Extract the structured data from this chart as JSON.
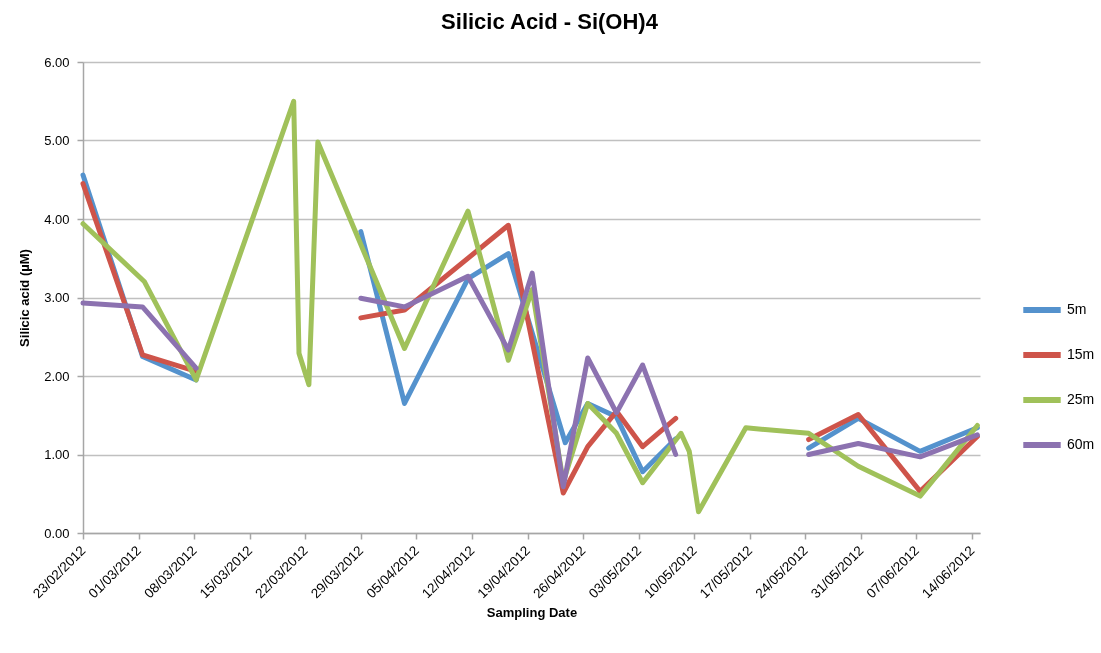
{
  "chart_data": {
    "type": "line",
    "title": "Silicic Acid - Si(OH)4",
    "xlabel": "Sampling Date",
    "ylabel": "Silicic acid (µM)",
    "xlim": [
      "2012-02-23",
      "2012-06-15"
    ],
    "xticks": [
      {
        "value": "2012-02-23",
        "label": "23/02/2012"
      },
      {
        "value": "2012-03-01",
        "label": "01/03/2012"
      },
      {
        "value": "2012-03-08",
        "label": "08/03/2012"
      },
      {
        "value": "2012-03-15",
        "label": "15/03/2012"
      },
      {
        "value": "2012-03-22",
        "label": "22/03/2012"
      },
      {
        "value": "2012-03-29",
        "label": "29/03/2012"
      },
      {
        "value": "2012-04-05",
        "label": "05/04/2012"
      },
      {
        "value": "2012-04-12",
        "label": "12/04/2012"
      },
      {
        "value": "2012-04-19",
        "label": "19/04/2012"
      },
      {
        "value": "2012-04-26",
        "label": "26/04/2012"
      },
      {
        "value": "2012-05-03",
        "label": "03/05/2012"
      },
      {
        "value": "2012-05-10",
        "label": "10/05/2012"
      },
      {
        "value": "2012-05-17",
        "label": "17/05/2012"
      },
      {
        "value": "2012-05-24",
        "label": "24/05/2012"
      },
      {
        "value": "2012-05-31",
        "label": "31/05/2012"
      },
      {
        "value": "2012-06-07",
        "label": "07/06/2012"
      },
      {
        "value": "2012-06-14",
        "label": "14/06/2012"
      }
    ],
    "ylim": [
      0,
      6
    ],
    "yticks": [
      {
        "value": 0,
        "label": "0.00"
      },
      {
        "value": 1,
        "label": "1.00"
      },
      {
        "value": 2,
        "label": "2.00"
      },
      {
        "value": 3,
        "label": "3.00"
      },
      {
        "value": 4,
        "label": "4.00"
      },
      {
        "value": 5,
        "label": "5.00"
      },
      {
        "value": 6,
        "label": "6.00"
      }
    ],
    "grid": "y",
    "legend": "right",
    "line_style": "solid",
    "series": [
      {
        "name": "5m",
        "color": "#5492cd",
        "x": [
          "2012-02-23",
          "2012-03-01T12:00",
          "2012-03-08T06:00",
          "2012-03-20T13:00",
          "2012-03-29",
          "2012-04-03T12:00",
          "2012-04-11T12:00",
          "2012-04-16T14:00",
          "2012-04-23T18:00",
          "2012-04-26T14:00",
          "2012-04-30T05:00",
          "2012-05-03T12:00",
          "2012-05-07T16:00",
          "2012-05-16T12:00",
          "2012-05-24T10:00",
          "2012-05-30T16:00",
          "2012-06-07T11:00",
          "2012-06-14T16:00"
        ],
        "values": [
          4.56,
          2.25,
          1.95,
          null,
          3.84,
          1.65,
          3.24,
          3.56,
          1.15,
          1.65,
          1.48,
          0.78,
          1.2,
          null,
          1.08,
          1.46,
          1.04,
          1.34
        ]
      },
      {
        "name": "15m",
        "color": "#ce544a",
        "x": [
          "2012-02-23",
          "2012-03-01T12:00",
          "2012-03-08T06:00",
          "2012-03-20T13:00",
          "2012-03-29",
          "2012-04-03T12:00",
          "2012-04-16T14:00",
          "2012-04-23T12:00",
          "2012-04-26T14:00",
          "2012-04-30T05:00",
          "2012-05-03T12:00",
          "2012-05-07T16:00",
          "2012-05-16T12:00",
          "2012-05-24T10:00",
          "2012-05-30T16:00",
          "2012-06-07T11:00",
          "2012-06-14T16:00"
        ],
        "values": [
          4.45,
          2.27,
          2.06,
          null,
          2.74,
          2.84,
          3.92,
          0.51,
          1.1,
          1.55,
          1.1,
          1.46,
          null,
          1.19,
          1.51,
          0.53,
          1.23
        ]
      },
      {
        "name": "25m",
        "color": "#a0c15a",
        "x": [
          "2012-02-23",
          "2012-03-01T18:00",
          "2012-03-08T06:00",
          "2012-03-20T13:00",
          "2012-03-21T05:00",
          "2012-03-22T11:00",
          "2012-03-23T14:00",
          "2012-04-03T12:00",
          "2012-04-11T12:00",
          "2012-04-16T14:00",
          "2012-04-19T14:00",
          "2012-04-23T12:00",
          "2012-04-26T14:00",
          "2012-04-30T05:00",
          "2012-05-03T12:00",
          "2012-05-08T08:00",
          "2012-05-09T09:00",
          "2012-05-10T13:00",
          "2012-05-16T12:00",
          "2012-05-24T10:00",
          "2012-05-30T16:00",
          "2012-06-07T11:00",
          "2012-06-14T16:00"
        ],
        "values": [
          3.94,
          3.2,
          1.95,
          5.5,
          2.29,
          1.89,
          4.98,
          2.35,
          4.1,
          2.2,
          3.1,
          0.65,
          1.65,
          1.27,
          0.64,
          1.27,
          1.04,
          0.27,
          1.34,
          1.27,
          0.85,
          0.47,
          1.37
        ]
      },
      {
        "name": "60m",
        "color": "#8c72b0",
        "x": [
          "2012-02-23",
          "2012-03-01T12:00",
          "2012-03-08T06:00",
          "2012-03-20T13:00",
          "2012-03-29",
          "2012-04-03T12:00",
          "2012-04-11T12:00",
          "2012-04-16T14:00",
          "2012-04-19T14:00",
          "2012-04-23T12:00",
          "2012-04-26T14:00",
          "2012-04-30T05:00",
          "2012-05-03T12:00",
          "2012-05-07T16:00",
          "2012-05-16T12:00",
          "2012-05-24T10:00",
          "2012-05-30T16:00",
          "2012-06-07T11:00",
          "2012-06-14T16:00"
        ],
        "values": [
          2.93,
          2.88,
          2.1,
          null,
          2.99,
          2.88,
          3.27,
          2.33,
          3.31,
          0.59,
          2.23,
          1.53,
          2.14,
          1.0,
          null,
          1.0,
          1.14,
          0.97,
          1.25
        ]
      }
    ]
  }
}
